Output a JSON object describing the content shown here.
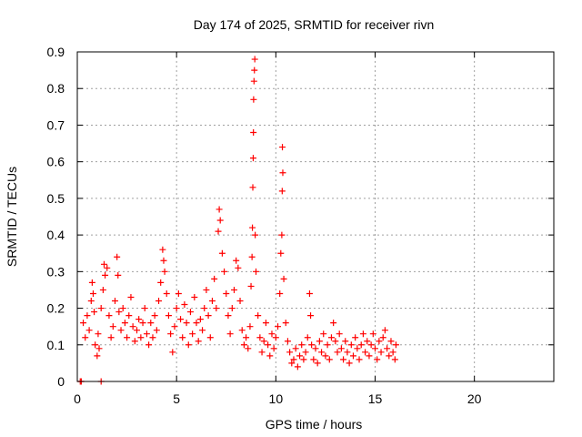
{
  "chart_data": {
    "type": "scatter",
    "title": "Day 174 of 2025, SRMTID for receiver rivn",
    "xlabel": "GPS time / hours",
    "ylabel": "SRMTID / TECUs",
    "xlim": [
      0,
      24
    ],
    "ylim": [
      0,
      0.9
    ],
    "grid": true,
    "x_ticks": [
      0,
      5,
      10,
      15,
      20
    ],
    "x_tick_labels": [
      "0",
      "5",
      "10",
      "15",
      "20"
    ],
    "y_ticks": [
      0,
      0.1,
      0.2,
      0.3,
      0.4,
      0.5,
      0.6,
      0.7,
      0.8,
      0.9
    ],
    "y_tick_labels": [
      "0",
      "0.1",
      "0.2",
      "0.3",
      "0.4",
      "0.5",
      "0.6",
      "0.7",
      "0.8",
      "0.9"
    ],
    "marker": "+",
    "marker_color": "#ff0000",
    "series": [
      {
        "name": "SRMTID",
        "points": [
          [
            0.15,
            0.0
          ],
          [
            0.2,
            0.0
          ],
          [
            1.2,
            0.0
          ],
          [
            0.3,
            0.16
          ],
          [
            0.4,
            0.12
          ],
          [
            0.5,
            0.18
          ],
          [
            0.6,
            0.14
          ],
          [
            0.7,
            0.22
          ],
          [
            0.75,
            0.27
          ],
          [
            0.8,
            0.24
          ],
          [
            0.85,
            0.19
          ],
          [
            0.9,
            0.1
          ],
          [
            1.0,
            0.07
          ],
          [
            1.05,
            0.13
          ],
          [
            1.1,
            0.09
          ],
          [
            1.2,
            0.2
          ],
          [
            1.3,
            0.25
          ],
          [
            1.35,
            0.32
          ],
          [
            1.4,
            0.29
          ],
          [
            1.5,
            0.31
          ],
          [
            1.6,
            0.18
          ],
          [
            1.7,
            0.12
          ],
          [
            1.8,
            0.15
          ],
          [
            1.9,
            0.22
          ],
          [
            2.0,
            0.34
          ],
          [
            2.05,
            0.29
          ],
          [
            2.1,
            0.19
          ],
          [
            2.2,
            0.14
          ],
          [
            2.3,
            0.2
          ],
          [
            2.4,
            0.16
          ],
          [
            2.5,
            0.12
          ],
          [
            2.6,
            0.18
          ],
          [
            2.7,
            0.23
          ],
          [
            2.8,
            0.15
          ],
          [
            2.9,
            0.11
          ],
          [
            3.0,
            0.14
          ],
          [
            3.1,
            0.17
          ],
          [
            3.2,
            0.12
          ],
          [
            3.3,
            0.16
          ],
          [
            3.4,
            0.2
          ],
          [
            3.5,
            0.13
          ],
          [
            3.6,
            0.1
          ],
          [
            3.7,
            0.16
          ],
          [
            3.8,
            0.12
          ],
          [
            3.9,
            0.18
          ],
          [
            4.0,
            0.14
          ],
          [
            4.1,
            0.22
          ],
          [
            4.2,
            0.27
          ],
          [
            4.3,
            0.36
          ],
          [
            4.35,
            0.33
          ],
          [
            4.4,
            0.3
          ],
          [
            4.5,
            0.24
          ],
          [
            4.6,
            0.18
          ],
          [
            4.7,
            0.13
          ],
          [
            4.8,
            0.08
          ],
          [
            4.9,
            0.15
          ],
          [
            5.0,
            0.2
          ],
          [
            5.1,
            0.24
          ],
          [
            5.2,
            0.17
          ],
          [
            5.3,
            0.12
          ],
          [
            5.4,
            0.21
          ],
          [
            5.5,
            0.16
          ],
          [
            5.6,
            0.1
          ],
          [
            5.7,
            0.19
          ],
          [
            5.8,
            0.13
          ],
          [
            5.9,
            0.23
          ],
          [
            6.0,
            0.16
          ],
          [
            6.1,
            0.11
          ],
          [
            6.2,
            0.17
          ],
          [
            6.3,
            0.14
          ],
          [
            6.4,
            0.2
          ],
          [
            6.5,
            0.25
          ],
          [
            6.6,
            0.18
          ],
          [
            6.7,
            0.12
          ],
          [
            6.8,
            0.22
          ],
          [
            6.9,
            0.28
          ],
          [
            7.0,
            0.2
          ],
          [
            7.1,
            0.41
          ],
          [
            7.15,
            0.47
          ],
          [
            7.2,
            0.44
          ],
          [
            7.3,
            0.35
          ],
          [
            7.4,
            0.3
          ],
          [
            7.5,
            0.24
          ],
          [
            7.6,
            0.18
          ],
          [
            7.7,
            0.13
          ],
          [
            7.8,
            0.2
          ],
          [
            7.9,
            0.25
          ],
          [
            8.0,
            0.33
          ],
          [
            8.1,
            0.31
          ],
          [
            8.2,
            0.22
          ],
          [
            8.3,
            0.14
          ],
          [
            8.4,
            0.1
          ],
          [
            8.5,
            0.12
          ],
          [
            8.6,
            0.09
          ],
          [
            8.7,
            0.15
          ],
          [
            8.75,
            0.26
          ],
          [
            8.8,
            0.34
          ],
          [
            8.82,
            0.42
          ],
          [
            8.84,
            0.53
          ],
          [
            8.86,
            0.61
          ],
          [
            8.87,
            0.68
          ],
          [
            8.88,
            0.77
          ],
          [
            8.9,
            0.82
          ],
          [
            8.92,
            0.85
          ],
          [
            8.94,
            0.88
          ],
          [
            8.96,
            0.4
          ],
          [
            9.0,
            0.3
          ],
          [
            9.1,
            0.18
          ],
          [
            9.2,
            0.12
          ],
          [
            9.3,
            0.08
          ],
          [
            9.4,
            0.11
          ],
          [
            9.5,
            0.16
          ],
          [
            9.6,
            0.1
          ],
          [
            9.7,
            0.07
          ],
          [
            9.8,
            0.13
          ],
          [
            9.9,
            0.09
          ],
          [
            10.0,
            0.12
          ],
          [
            10.1,
            0.15
          ],
          [
            10.2,
            0.24
          ],
          [
            10.25,
            0.35
          ],
          [
            10.3,
            0.4
          ],
          [
            10.32,
            0.52
          ],
          [
            10.35,
            0.57
          ],
          [
            10.33,
            0.64
          ],
          [
            10.4,
            0.28
          ],
          [
            10.5,
            0.16
          ],
          [
            10.6,
            0.11
          ],
          [
            10.7,
            0.08
          ],
          [
            10.8,
            0.05
          ],
          [
            10.9,
            0.06
          ],
          [
            11.0,
            0.09
          ],
          [
            11.1,
            0.04
          ],
          [
            11.2,
            0.07
          ],
          [
            11.3,
            0.1
          ],
          [
            11.4,
            0.06
          ],
          [
            11.5,
            0.08
          ],
          [
            11.6,
            0.12
          ],
          [
            11.7,
            0.24
          ],
          [
            11.75,
            0.18
          ],
          [
            11.8,
            0.1
          ],
          [
            11.9,
            0.06
          ],
          [
            12.0,
            0.09
          ],
          [
            12.1,
            0.05
          ],
          [
            12.2,
            0.11
          ],
          [
            12.3,
            0.08
          ],
          [
            12.4,
            0.13
          ],
          [
            12.5,
            0.07
          ],
          [
            12.6,
            0.1
          ],
          [
            12.7,
            0.06
          ],
          [
            12.8,
            0.12
          ],
          [
            12.9,
            0.16
          ],
          [
            13.0,
            0.11
          ],
          [
            13.1,
            0.08
          ],
          [
            13.2,
            0.13
          ],
          [
            13.3,
            0.09
          ],
          [
            13.4,
            0.06
          ],
          [
            13.5,
            0.11
          ],
          [
            13.6,
            0.08
          ],
          [
            13.7,
            0.05
          ],
          [
            13.8,
            0.1
          ],
          [
            13.9,
            0.07
          ],
          [
            14.0,
            0.12
          ],
          [
            14.1,
            0.09
          ],
          [
            14.2,
            0.06
          ],
          [
            14.3,
            0.1
          ],
          [
            14.4,
            0.13
          ],
          [
            14.5,
            0.08
          ],
          [
            14.6,
            0.11
          ],
          [
            14.7,
            0.07
          ],
          [
            14.8,
            0.1
          ],
          [
            14.9,
            0.13
          ],
          [
            15.0,
            0.09
          ],
          [
            15.1,
            0.06
          ],
          [
            15.2,
            0.11
          ],
          [
            15.3,
            0.08
          ],
          [
            15.4,
            0.12
          ],
          [
            15.5,
            0.14
          ],
          [
            15.6,
            0.09
          ],
          [
            15.7,
            0.07
          ],
          [
            15.8,
            0.11
          ],
          [
            15.9,
            0.08
          ],
          [
            16.0,
            0.06
          ],
          [
            16.05,
            0.1
          ]
        ]
      }
    ]
  }
}
